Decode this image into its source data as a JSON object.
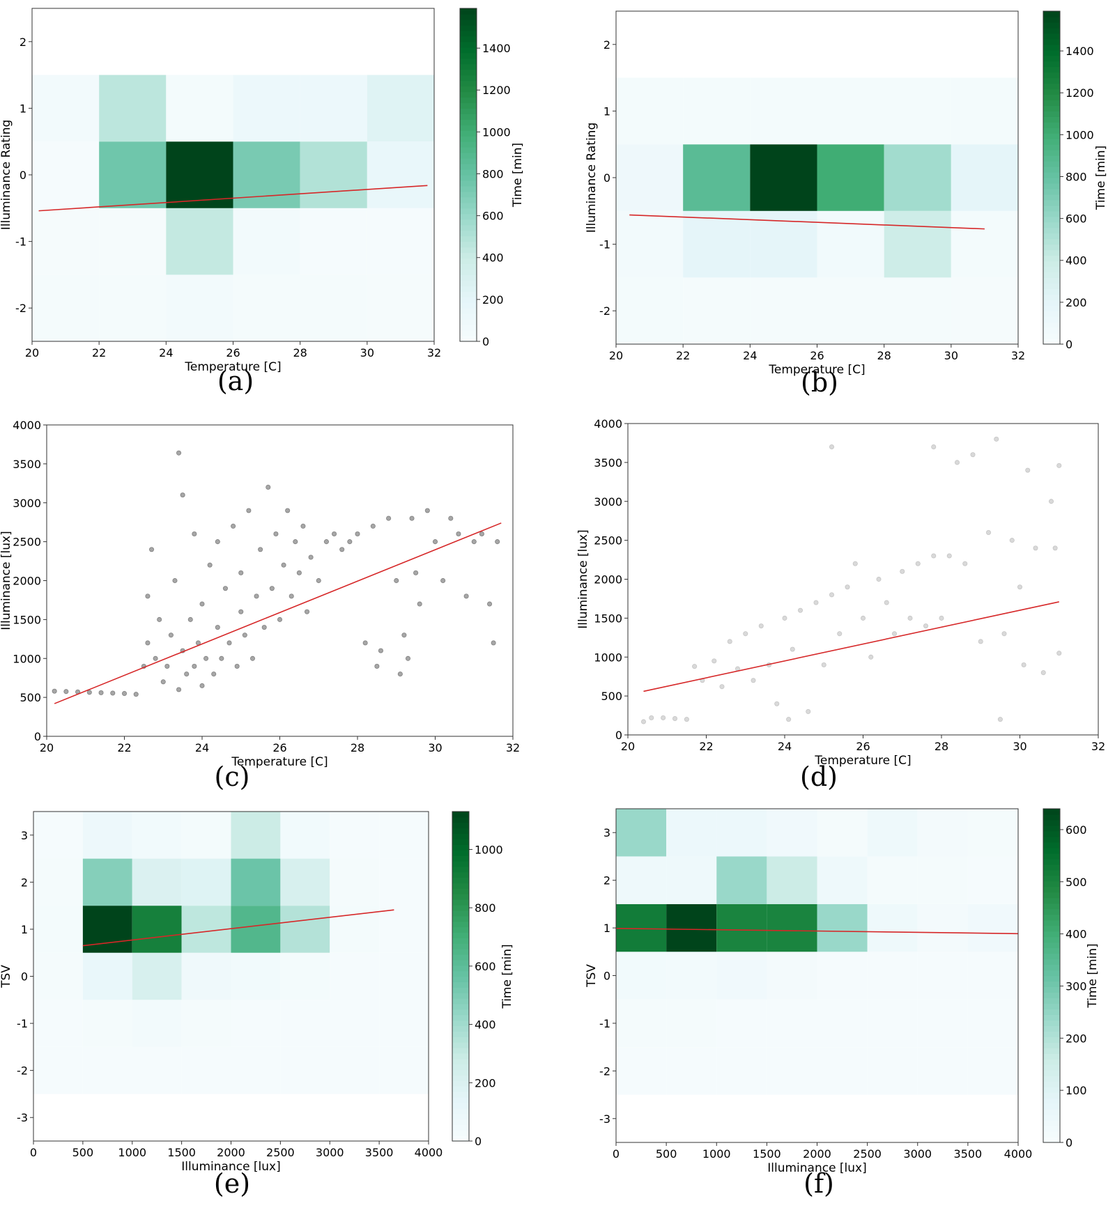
{
  "chart_data": [
    {
      "panel": "(a)",
      "type": "heatmap",
      "xlabel": "Temperature [C]",
      "ylabel": "Illuminance Rating",
      "colorbar_label": "Time [min]",
      "xlim": [
        20,
        32
      ],
      "ylim": [
        -2.5,
        2.5
      ],
      "xticks": [
        20,
        22,
        24,
        26,
        28,
        30,
        32
      ],
      "yticks": [
        -2,
        -1,
        0,
        1,
        2
      ],
      "colorbar_ticks": [
        0,
        200,
        400,
        600,
        800,
        1000,
        1200,
        1400
      ],
      "colorbar_max": 1590,
      "x_bins": [
        20,
        22,
        24,
        26,
        28,
        30,
        32
      ],
      "y_bins": [
        -2.5,
        -1.5,
        -0.5,
        0.5,
        1.5
      ],
      "values": [
        [
          30,
          35,
          50,
          35,
          30,
          25
        ],
        [
          25,
          25,
          430,
          60,
          20,
          20
        ],
        [
          20,
          760,
          1590,
          720,
          500,
          150
        ],
        [
          50,
          460,
          40,
          120,
          120,
          250
        ]
      ],
      "fit_line": [
        [
          20.2,
          -0.54
        ],
        [
          31.8,
          -0.16
        ]
      ],
      "colormap": [
        "#f7fcfd",
        "#e5f5f9",
        "#ccece6",
        "#99d8c9",
        "#66c2a4",
        "#41ae76",
        "#238b45",
        "#006d2c",
        "#00441b"
      ],
      "fit_color": "#d62728"
    },
    {
      "panel": "(b)",
      "type": "heatmap",
      "xlabel": "Temperature [C]",
      "ylabel": "Illuminance Rating",
      "colorbar_label": "Time [min]",
      "xlim": [
        20,
        32
      ],
      "ylim": [
        -2.5,
        2.5
      ],
      "xticks": [
        20,
        22,
        24,
        26,
        28,
        30,
        32
      ],
      "yticks": [
        -2,
        -1,
        0,
        1,
        2
      ],
      "colorbar_ticks": [
        0,
        200,
        400,
        600,
        800,
        1000,
        1200,
        1400
      ],
      "colorbar_max": 1590,
      "x_bins": [
        20,
        22,
        24,
        26,
        28,
        30,
        32
      ],
      "y_bins": [
        -2.5,
        -1.5,
        -0.5,
        0.5,
        1.5
      ],
      "values": [
        [
          40,
          30,
          30,
          30,
          30,
          25
        ],
        [
          60,
          200,
          200,
          70,
          380,
          40
        ],
        [
          100,
          860,
          1590,
          1000,
          560,
          200
        ],
        [
          40,
          40,
          40,
          40,
          40,
          40
        ]
      ],
      "fit_line": [
        [
          20.4,
          -0.56
        ],
        [
          31.0,
          -0.77
        ]
      ],
      "colormap": [
        "#f7fcfd",
        "#e5f5f9",
        "#ccece6",
        "#99d8c9",
        "#66c2a4",
        "#41ae76",
        "#238b45",
        "#006d2c",
        "#00441b"
      ],
      "fit_color": "#d62728"
    },
    {
      "panel": "(c)",
      "type": "scatter",
      "xlabel": "Temperature [C]",
      "ylabel": "Illuminance [lux]",
      "xlim": [
        20,
        32
      ],
      "ylim": [
        0,
        4000
      ],
      "xticks": [
        20,
        22,
        24,
        26,
        28,
        30,
        32
      ],
      "yticks": [
        0,
        500,
        1000,
        1500,
        2000,
        2500,
        3000,
        3500,
        4000
      ],
      "point_alpha": 0.35,
      "points": [
        [
          20.2,
          580
        ],
        [
          20.5,
          575
        ],
        [
          20.8,
          570
        ],
        [
          21.1,
          565
        ],
        [
          21.4,
          560
        ],
        [
          21.7,
          555
        ],
        [
          22.0,
          550
        ],
        [
          22.3,
          540
        ],
        [
          22.5,
          900
        ],
        [
          22.6,
          1200
        ],
        [
          22.6,
          1800
        ],
        [
          22.7,
          2400
        ],
        [
          22.8,
          1000
        ],
        [
          22.9,
          1500
        ],
        [
          23.0,
          700
        ],
        [
          23.1,
          900
        ],
        [
          23.2,
          1300
        ],
        [
          23.3,
          2000
        ],
        [
          23.4,
          600
        ],
        [
          23.4,
          3640
        ],
        [
          23.5,
          1100
        ],
        [
          23.5,
          3100
        ],
        [
          23.6,
          800
        ],
        [
          23.7,
          1500
        ],
        [
          23.8,
          900
        ],
        [
          23.8,
          2600
        ],
        [
          23.9,
          1200
        ],
        [
          24.0,
          650
        ],
        [
          24.0,
          1700
        ],
        [
          24.1,
          1000
        ],
        [
          24.2,
          2200
        ],
        [
          24.3,
          800
        ],
        [
          24.4,
          1400
        ],
        [
          24.4,
          2500
        ],
        [
          24.5,
          1000
        ],
        [
          24.6,
          1900
        ],
        [
          24.7,
          1200
        ],
        [
          24.8,
          2700
        ],
        [
          24.9,
          900
        ],
        [
          25.0,
          1600
        ],
        [
          25.0,
          2100
        ],
        [
          25.1,
          1300
        ],
        [
          25.2,
          2900
        ],
        [
          25.3,
          1000
        ],
        [
          25.4,
          1800
        ],
        [
          25.5,
          2400
        ],
        [
          25.6,
          1400
        ],
        [
          25.7,
          3200
        ],
        [
          25.8,
          1900
        ],
        [
          25.9,
          2600
        ],
        [
          26.0,
          1500
        ],
        [
          26.1,
          2200
        ],
        [
          26.2,
          2900
        ],
        [
          26.3,
          1800
        ],
        [
          26.4,
          2500
        ],
        [
          26.5,
          2100
        ],
        [
          26.6,
          2700
        ],
        [
          26.7,
          1600
        ],
        [
          26.8,
          2300
        ],
        [
          27.0,
          2000
        ],
        [
          27.2,
          2500
        ],
        [
          27.4,
          2600
        ],
        [
          27.6,
          2400
        ],
        [
          27.8,
          2500
        ],
        [
          28.0,
          2600
        ],
        [
          28.2,
          1200
        ],
        [
          28.4,
          2700
        ],
        [
          28.5,
          900
        ],
        [
          28.6,
          1100
        ],
        [
          28.8,
          2800
        ],
        [
          29.0,
          2000
        ],
        [
          29.1,
          800
        ],
        [
          29.2,
          1300
        ],
        [
          29.3,
          1000
        ],
        [
          29.4,
          2800
        ],
        [
          29.5,
          2100
        ],
        [
          29.6,
          1700
        ],
        [
          29.8,
          2900
        ],
        [
          30.0,
          2500
        ],
        [
          30.2,
          2000
        ],
        [
          30.4,
          2800
        ],
        [
          30.6,
          2600
        ],
        [
          30.8,
          1800
        ],
        [
          31.0,
          2500
        ],
        [
          31.2,
          2600
        ],
        [
          31.4,
          1700
        ],
        [
          31.5,
          1200
        ],
        [
          31.6,
          2500
        ]
      ],
      "fit_line": [
        [
          20.2,
          420
        ],
        [
          31.7,
          2740
        ]
      ],
      "point_color": "#000000",
      "fit_color": "#d62728"
    },
    {
      "panel": "(d)",
      "type": "scatter",
      "xlabel": "Temperature [C]",
      "ylabel": "Illuminance [lux]",
      "xlim": [
        20,
        32
      ],
      "ylim": [
        0,
        4000
      ],
      "xticks": [
        20,
        22,
        24,
        26,
        28,
        30,
        32
      ],
      "yticks": [
        0,
        500,
        1000,
        1500,
        2000,
        2500,
        3000,
        3500,
        4000
      ],
      "point_alpha": 0.15,
      "points": [
        [
          20.4,
          170
        ],
        [
          20.6,
          220
        ],
        [
          20.9,
          220
        ],
        [
          21.2,
          210
        ],
        [
          21.5,
          200
        ],
        [
          21.7,
          880
        ],
        [
          21.9,
          700
        ],
        [
          22.2,
          950
        ],
        [
          22.4,
          620
        ],
        [
          22.6,
          1200
        ],
        [
          22.8,
          850
        ],
        [
          23.0,
          1300
        ],
        [
          23.2,
          700
        ],
        [
          23.4,
          1400
        ],
        [
          23.6,
          900
        ],
        [
          23.8,
          400
        ],
        [
          24.0,
          1500
        ],
        [
          24.1,
          200
        ],
        [
          24.2,
          1100
        ],
        [
          24.4,
          1600
        ],
        [
          24.6,
          300
        ],
        [
          24.8,
          1700
        ],
        [
          25.0,
          900
        ],
        [
          25.2,
          1800
        ],
        [
          25.2,
          3700
        ],
        [
          25.4,
          1300
        ],
        [
          25.6,
          1900
        ],
        [
          25.8,
          2200
        ],
        [
          26.0,
          1500
        ],
        [
          26.2,
          1000
        ],
        [
          26.4,
          2000
        ],
        [
          26.6,
          1700
        ],
        [
          26.8,
          1300
        ],
        [
          27.0,
          2100
        ],
        [
          27.2,
          1500
        ],
        [
          27.4,
          2200
        ],
        [
          27.6,
          1400
        ],
        [
          27.8,
          2300
        ],
        [
          27.8,
          3700
        ],
        [
          28.0,
          1500
        ],
        [
          28.2,
          2300
        ],
        [
          28.4,
          3500
        ],
        [
          28.6,
          2200
        ],
        [
          28.8,
          3600
        ],
        [
          29.0,
          1200
        ],
        [
          29.2,
          2600
        ],
        [
          29.4,
          3800
        ],
        [
          29.5,
          200
        ],
        [
          29.6,
          1300
        ],
        [
          29.8,
          2500
        ],
        [
          30.0,
          1900
        ],
        [
          30.1,
          900
        ],
        [
          30.2,
          3400
        ],
        [
          30.4,
          2400
        ],
        [
          30.6,
          800
        ],
        [
          30.8,
          3000
        ],
        [
          30.9,
          2400
        ],
        [
          31.0,
          1050
        ],
        [
          31.0,
          3460
        ]
      ],
      "fit_line": [
        [
          20.4,
          560
        ],
        [
          31.0,
          1710
        ]
      ],
      "point_color": "#000000",
      "fit_color": "#d62728"
    },
    {
      "panel": "(e)",
      "type": "heatmap",
      "xlabel": "Illuminance [lux]",
      "ylabel": "TSV",
      "colorbar_label": "Time [min]",
      "xlim": [
        0,
        4000
      ],
      "ylim": [
        -3.5,
        3.5
      ],
      "xticks": [
        0,
        500,
        1000,
        1500,
        2000,
        2500,
        3000,
        3500,
        4000
      ],
      "yticks": [
        -3,
        -2,
        -1,
        0,
        1,
        2,
        3
      ],
      "colorbar_ticks": [
        0,
        200,
        400,
        600,
        800,
        1000
      ],
      "colorbar_max": 1130,
      "x_bins": [
        0,
        500,
        1000,
        1500,
        2000,
        2500,
        3000,
        3500,
        4000
      ],
      "y_bins": [
        -2.5,
        -1.5,
        -0.5,
        0.5,
        1.5,
        2.5,
        3.5
      ],
      "values": [
        [
          15,
          15,
          15,
          15,
          15,
          15,
          15,
          15
        ],
        [
          15,
          25,
          40,
          20,
          15,
          15,
          15,
          15
        ],
        [
          20,
          110,
          220,
          60,
          50,
          30,
          15,
          15
        ],
        [
          30,
          1130,
          900,
          320,
          640,
          350,
          30,
          15
        ],
        [
          20,
          480,
          200,
          180,
          550,
          220,
          20,
          15
        ],
        [
          15,
          80,
          50,
          30,
          280,
          50,
          15,
          15
        ]
      ],
      "fit_line": [
        [
          500,
          0.65
        ],
        [
          3650,
          1.41
        ]
      ],
      "colormap": [
        "#f7fcfd",
        "#e5f5f9",
        "#ccece6",
        "#99d8c9",
        "#66c2a4",
        "#41ae76",
        "#238b45",
        "#006d2c",
        "#00441b"
      ],
      "fit_color": "#d62728"
    },
    {
      "panel": "(f)",
      "type": "heatmap",
      "xlabel": "Illuminance [lux]",
      "ylabel": "TSV",
      "colorbar_label": "Time [min]",
      "xlim": [
        0,
        4000
      ],
      "ylim": [
        -3.5,
        3.5
      ],
      "xticks": [
        0,
        500,
        1000,
        1500,
        2000,
        2500,
        3000,
        3500,
        4000
      ],
      "yticks": [
        -3,
        -2,
        -1,
        0,
        1,
        2,
        3
      ],
      "colorbar_ticks": [
        0,
        100,
        200,
        300,
        400,
        500,
        600
      ],
      "colorbar_max": 640,
      "x_bins": [
        0,
        500,
        1000,
        1500,
        2000,
        2500,
        3000,
        3500,
        4000
      ],
      "y_bins": [
        -2.5,
        -1.5,
        -0.5,
        0.5,
        1.5,
        2.5,
        3.5
      ],
      "values": [
        [
          8,
          8,
          8,
          8,
          8,
          8,
          8,
          8
        ],
        [
          15,
          12,
          10,
          8,
          8,
          8,
          8,
          8
        ],
        [
          25,
          22,
          30,
          20,
          10,
          8,
          8,
          8
        ],
        [
          520,
          640,
          500,
          500,
          240,
          40,
          20,
          30
        ],
        [
          40,
          40,
          240,
          160,
          40,
          15,
          15,
          8
        ],
        [
          240,
          50,
          50,
          30,
          15,
          40,
          20,
          15
        ]
      ],
      "fit_line": [
        [
          0,
          0.99
        ],
        [
          4000,
          0.88
        ]
      ],
      "colormap": [
        "#f7fcfd",
        "#e5f5f9",
        "#ccece6",
        "#99d8c9",
        "#66c2a4",
        "#41ae76",
        "#238b45",
        "#006d2c",
        "#00441b"
      ],
      "fit_color": "#d62728"
    }
  ]
}
